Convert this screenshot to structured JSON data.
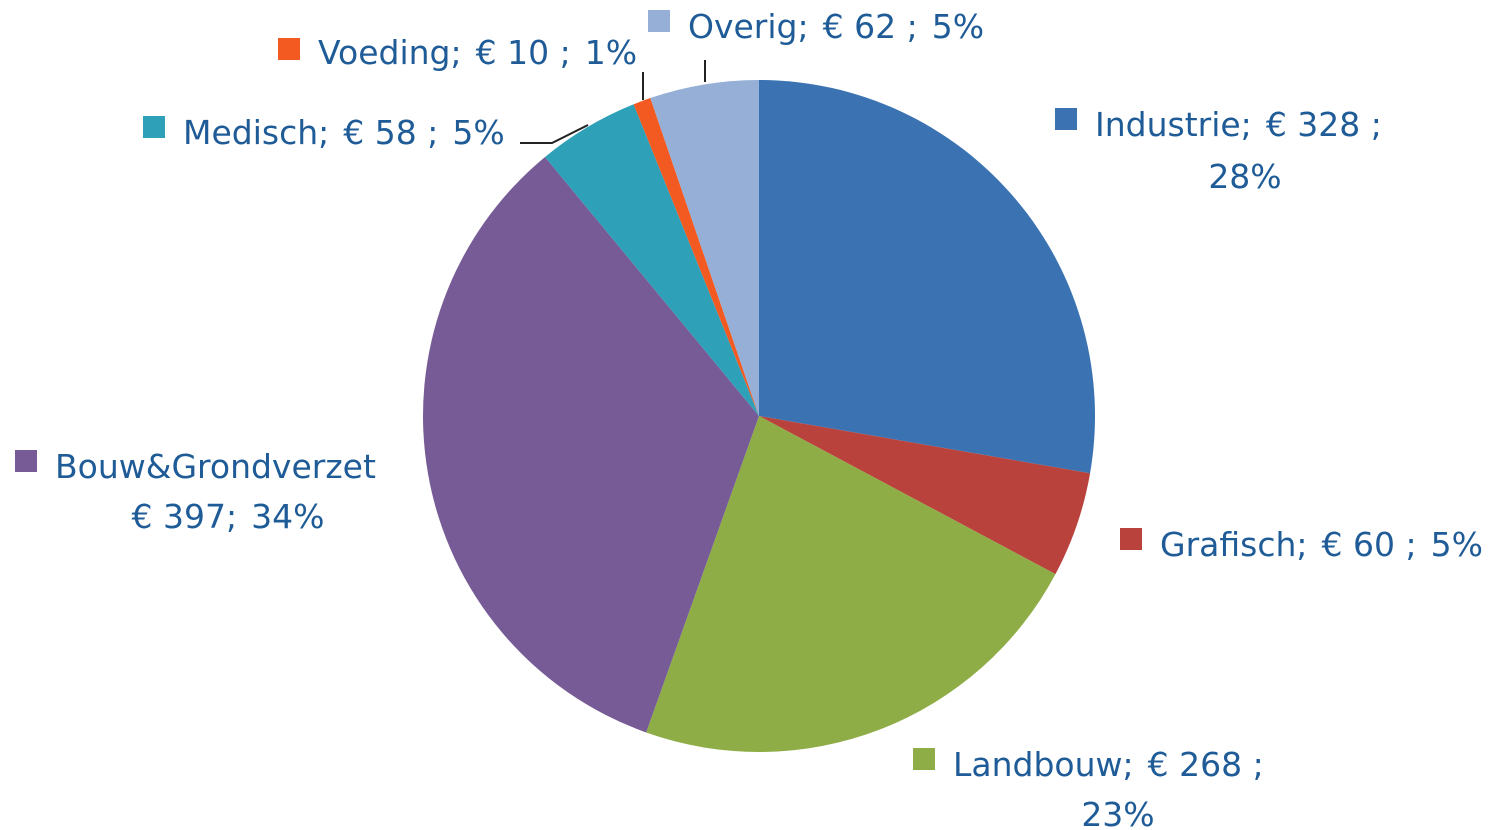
{
  "chart_data": {
    "type": "pie",
    "categories": [
      "Industrie;",
      "Grafisch;",
      "Landbouw;",
      "Bouw&Grondverzet",
      "Medisch;",
      "Voeding;",
      "Overig;"
    ],
    "values": [
      328,
      60,
      268,
      397,
      58,
      10,
      62
    ],
    "value_labels": [
      "€ 328 ;",
      "€ 60 ;",
      "€ 268 ;",
      "€ 397;",
      "€ 58 ;",
      "€ 10 ;",
      "€ 62 ;"
    ],
    "percent_labels": [
      "28%",
      "5%",
      "23%",
      "34%",
      "5%",
      "1%",
      "5%"
    ],
    "colors": [
      "#3b73b2",
      "#b9433c",
      "#8fad47",
      "#765b96",
      "#2ea1b9",
      "#f25a22",
      "#95afd7"
    ]
  }
}
